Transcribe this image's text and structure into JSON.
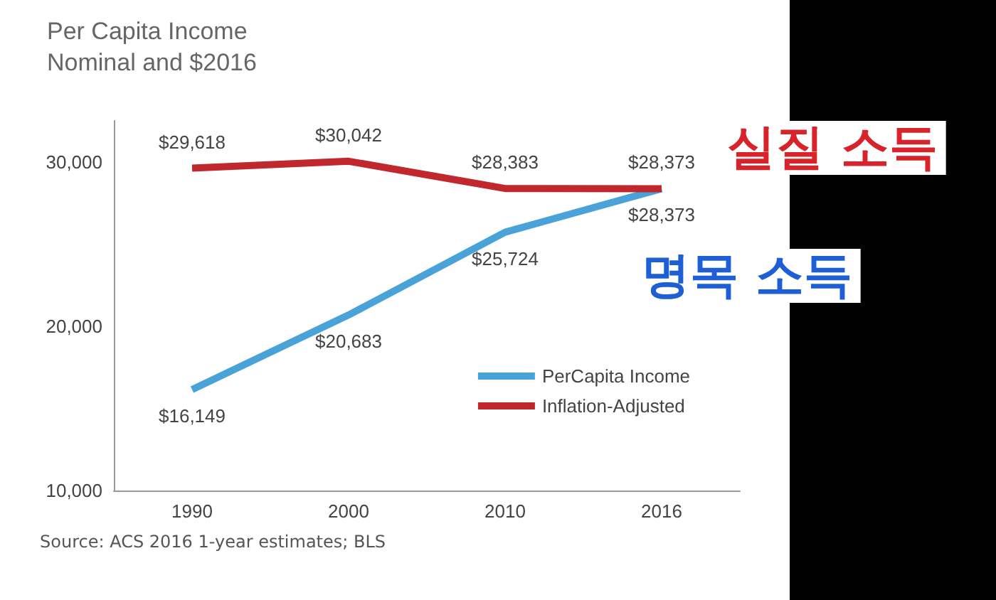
{
  "chart_data": {
    "type": "line",
    "title": "Per Capita Income\nNominal and $2016",
    "categories": [
      "1990",
      "2000",
      "2010",
      "2016"
    ],
    "series": [
      {
        "name": "PerCapita Income",
        "color": "#4aa3d8",
        "values": [
          16149,
          20683,
          25724,
          28373
        ],
        "value_labels": [
          "$16,149",
          "$20,683",
          "$25,724",
          "$28,373"
        ]
      },
      {
        "name": "Inflation-Adjusted",
        "color": "#c0282d",
        "values": [
          29618,
          30042,
          28383,
          28373
        ],
        "value_labels": [
          "$29,618",
          "$30,042",
          "$28,383",
          "$28,373"
        ]
      }
    ],
    "ylim": [
      10000,
      32500
    ],
    "yticks": [
      {
        "value": 10000,
        "label": "10,000"
      },
      {
        "value": 20000,
        "label": "20,000"
      },
      {
        "value": 30000,
        "label": "30,000"
      }
    ],
    "grid": false,
    "legend": "bottom right",
    "annotations": [
      "Source: ACS 2016 1-year estimates; BLS",
      "실질 소득",
      "명목 소득"
    ]
  }
}
